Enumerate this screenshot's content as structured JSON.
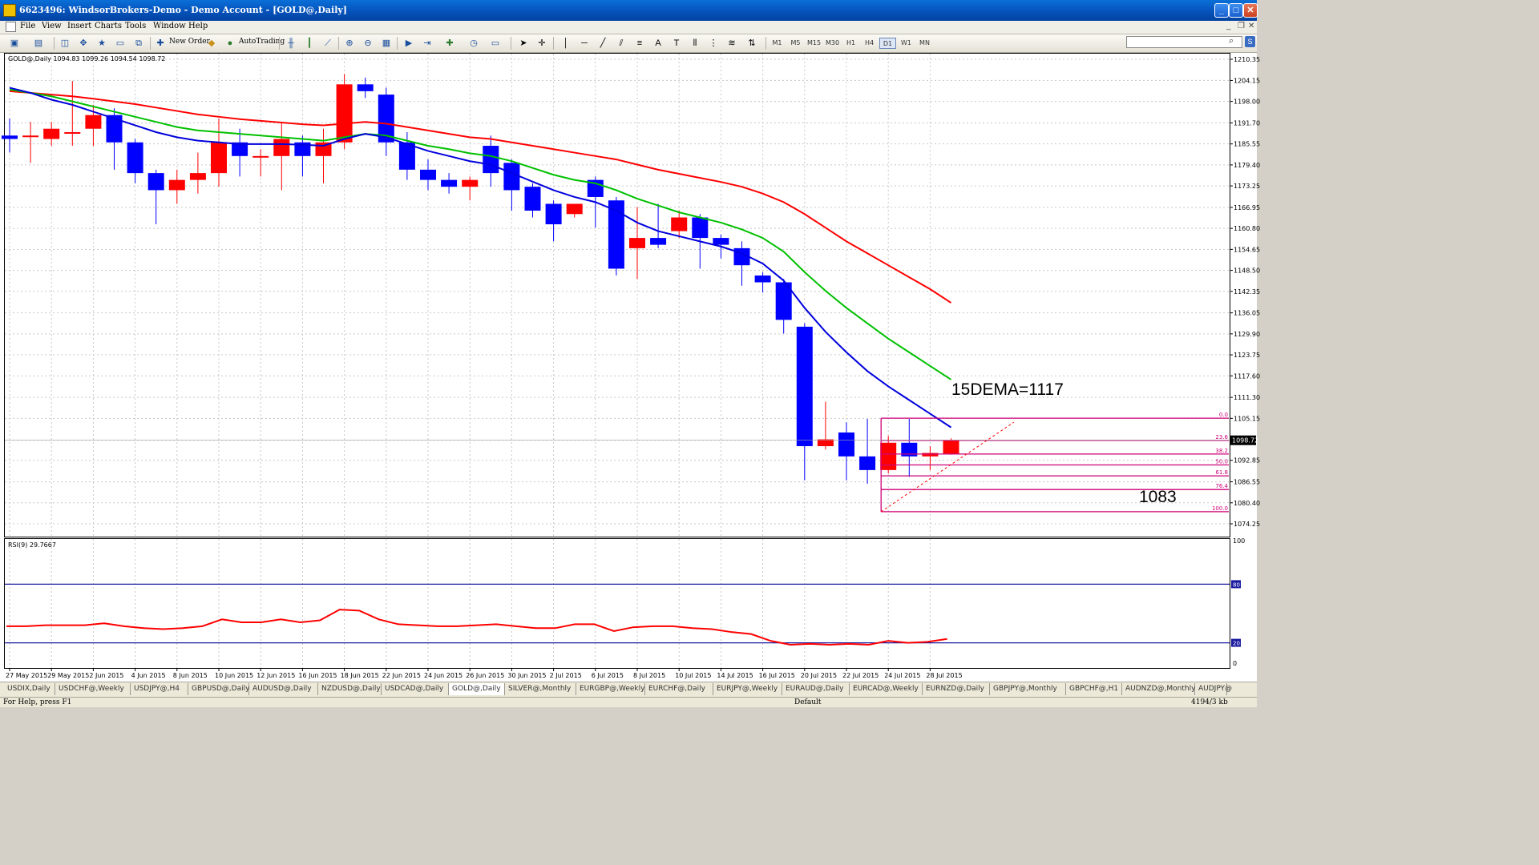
{
  "window": {
    "title": "6623496: WindsorBrokers-Demo - Demo Account - [GOLD@,Daily]",
    "controls": [
      "_",
      "□",
      "✕"
    ]
  },
  "menu": {
    "items": [
      "File",
      "View",
      "Insert",
      "Charts",
      "Tools",
      "Window",
      "Help"
    ],
    "mdi_controls": [
      "_",
      "❐",
      "✕"
    ]
  },
  "toolbar": {
    "new_order_label": "New Order",
    "autotrading_label": "AutoTrading",
    "timeframes": [
      "M1",
      "M5",
      "M15",
      "M30",
      "H1",
      "H4",
      "D1",
      "W1",
      "MN"
    ],
    "active_timeframe": "D1"
  },
  "chart_data": [
    {
      "type": "candlestick",
      "symbol_header": "GOLD@,Daily  1094.83 1099.26 1094.54 1098.72",
      "current_price_label": "1098.72",
      "ylim": [
        1074.25,
        1210.35
      ],
      "y_ticks": [
        "1210.35",
        "1204.15",
        "1198.00",
        "1191.70",
        "1185.55",
        "1179.40",
        "1173.25",
        "1166.95",
        "1160.80",
        "1154.65",
        "1148.50",
        "1142.35",
        "1136.05",
        "1129.90",
        "1123.75",
        "1117.60",
        "1111.30",
        "1105.15",
        "1098.72",
        "1092.85",
        "1086.55",
        "1080.40",
        "1074.25"
      ],
      "x_labels": [
        "27 May 2015",
        "29 May 2015",
        "2 Jun 2015",
        "4 Jun 2015",
        "8 Jun 2015",
        "10 Jun 2015",
        "12 Jun 2015",
        "16 Jun 2015",
        "18 Jun 2015",
        "22 Jun 2015",
        "24 Jun 2015",
        "26 Jun 2015",
        "30 Jun 2015",
        "2 Jul 2015",
        "6 Jul 2015",
        "8 Jul 2015",
        "10 Jul 2015",
        "14 Jul 2015",
        "16 Jul 2015",
        "20 Jul 2015",
        "22 Jul 2015",
        "24 Jul 2015",
        "28 Jul 2015"
      ],
      "candles": [
        {
          "o": 1188.0,
          "h": 1193.0,
          "l": 1183.0,
          "c": 1187.0
        },
        {
          "o": 1188.0,
          "h": 1192.0,
          "l": 1180.0,
          "c": 1188.0
        },
        {
          "o": 1187.0,
          "h": 1192.0,
          "l": 1185.0,
          "c": 1190.0
        },
        {
          "o": 1189.0,
          "h": 1204.0,
          "l": 1185.0,
          "c": 1189.0
        },
        {
          "o": 1190.0,
          "h": 1197.0,
          "l": 1185.0,
          "c": 1194.0
        },
        {
          "o": 1194.0,
          "h": 1196.0,
          "l": 1178.0,
          "c": 1186.0
        },
        {
          "o": 1186.0,
          "h": 1187.0,
          "l": 1174.0,
          "c": 1177.0
        },
        {
          "o": 1177.0,
          "h": 1178.0,
          "l": 1162.0,
          "c": 1172.0
        },
        {
          "o": 1172.0,
          "h": 1178.0,
          "l": 1168.0,
          "c": 1175.0
        },
        {
          "o": 1175.0,
          "h": 1183.0,
          "l": 1171.0,
          "c": 1177.0
        },
        {
          "o": 1177.0,
          "h": 1193.0,
          "l": 1173.0,
          "c": 1186.0
        },
        {
          "o": 1186.0,
          "h": 1190.0,
          "l": 1176.0,
          "c": 1182.0
        },
        {
          "o": 1182.0,
          "h": 1184.0,
          "l": 1176.0,
          "c": 1182.0
        },
        {
          "o": 1182.0,
          "h": 1192.0,
          "l": 1172.0,
          "c": 1187.0
        },
        {
          "o": 1186.0,
          "h": 1188.0,
          "l": 1176.0,
          "c": 1182.0
        },
        {
          "o": 1182.0,
          "h": 1190.0,
          "l": 1174.0,
          "c": 1186.0
        },
        {
          "o": 1186.0,
          "h": 1206.0,
          "l": 1184.0,
          "c": 1203.0
        },
        {
          "o": 1203.0,
          "h": 1205.0,
          "l": 1199.0,
          "c": 1201.0
        },
        {
          "o": 1200.0,
          "h": 1202.0,
          "l": 1182.0,
          "c": 1186.0
        },
        {
          "o": 1186.0,
          "h": 1189.0,
          "l": 1175.0,
          "c": 1178.0
        },
        {
          "o": 1178.0,
          "h": 1181.0,
          "l": 1172.0,
          "c": 1175.0
        },
        {
          "o": 1175.0,
          "h": 1177.0,
          "l": 1171.0,
          "c": 1173.0
        },
        {
          "o": 1173.0,
          "h": 1176.0,
          "l": 1169.0,
          "c": 1175.0
        },
        {
          "o": 1185.0,
          "h": 1188.0,
          "l": 1173.0,
          "c": 1177.0
        },
        {
          "o": 1180.0,
          "h": 1181.0,
          "l": 1166.0,
          "c": 1172.0
        },
        {
          "o": 1173.0,
          "h": 1174.0,
          "l": 1164.0,
          "c": 1166.0
        },
        {
          "o": 1168.0,
          "h": 1169.0,
          "l": 1157.0,
          "c": 1162.0
        },
        {
          "o": 1165.0,
          "h": 1167.0,
          "l": 1164.0,
          "c": 1168.0
        },
        {
          "o": 1175.0,
          "h": 1176.0,
          "l": 1161.0,
          "c": 1170.0
        },
        {
          "o": 1169.0,
          "h": 1170.0,
          "l": 1147.0,
          "c": 1149.0
        },
        {
          "o": 1155.0,
          "h": 1167.0,
          "l": 1146.0,
          "c": 1158.0
        },
        {
          "o": 1158.0,
          "h": 1168.0,
          "l": 1155.0,
          "c": 1156.0
        },
        {
          "o": 1160.0,
          "h": 1166.0,
          "l": 1158.0,
          "c": 1164.0
        },
        {
          "o": 1164.0,
          "h": 1165.0,
          "l": 1149.0,
          "c": 1158.0
        },
        {
          "o": 1158.0,
          "h": 1159.0,
          "l": 1152.0,
          "c": 1156.0
        },
        {
          "o": 1155.0,
          "h": 1157.0,
          "l": 1144.0,
          "c": 1150.0
        },
        {
          "o": 1147.0,
          "h": 1148.0,
          "l": 1142.0,
          "c": 1145.0
        },
        {
          "o": 1145.0,
          "h": 1146.0,
          "l": 1130.0,
          "c": 1134.0
        },
        {
          "o": 1132.0,
          "h": 1133.0,
          "l": 1087.0,
          "c": 1097.0
        },
        {
          "o": 1097.0,
          "h": 1110.0,
          "l": 1096.0,
          "c": 1099.0
        },
        {
          "o": 1101.0,
          "h": 1104.0,
          "l": 1087.0,
          "c": 1094.0
        },
        {
          "o": 1094.0,
          "h": 1105.0,
          "l": 1086.0,
          "c": 1090.0
        },
        {
          "o": 1090.0,
          "h": 1100.0,
          "l": 1089.0,
          "c": 1098.0
        },
        {
          "o": 1098.0,
          "h": 1105.0,
          "l": 1088.0,
          "c": 1094.0
        },
        {
          "o": 1094.0,
          "h": 1097.0,
          "l": 1090.0,
          "c": 1095.0
        },
        {
          "o": 1094.8,
          "h": 1099.3,
          "l": 1094.5,
          "c": 1098.7
        }
      ],
      "series": [
        {
          "color": "#ff0000",
          "values": [
            1201.0,
            1200.5,
            1200.0,
            1199.5,
            1198.8,
            1198.0,
            1197.2,
            1196.2,
            1195.2,
            1194.2,
            1193.5,
            1192.8,
            1192.3,
            1191.8,
            1191.3,
            1191.0,
            1191.5,
            1192.0,
            1191.5,
            1190.5,
            1189.5,
            1188.5,
            1187.5,
            1187.0,
            1186.0,
            1185.0,
            1184.0,
            1183.0,
            1182.0,
            1181.0,
            1179.5,
            1178.0,
            1176.8,
            1175.6,
            1174.4,
            1173.0,
            1171.0,
            1168.5,
            1165.0,
            1161.0,
            1157.0,
            1153.5,
            1150.0,
            1146.5,
            1143.0,
            1139.0
          ]
        },
        {
          "color": "#00c000",
          "values": [
            1201.5,
            1200.5,
            1199.5,
            1198.0,
            1196.5,
            1195.0,
            1193.5,
            1192.0,
            1190.5,
            1189.5,
            1189.0,
            1188.5,
            1188.0,
            1187.5,
            1187.0,
            1186.5,
            1187.5,
            1188.5,
            1188.0,
            1186.5,
            1185.0,
            1184.0,
            1182.8,
            1182.0,
            1180.5,
            1178.5,
            1176.5,
            1175.0,
            1174.0,
            1172.0,
            1169.5,
            1167.5,
            1165.5,
            1164.0,
            1162.5,
            1160.5,
            1158.0,
            1154.0,
            1148.0,
            1142.5,
            1137.5,
            1133.0,
            1128.5,
            1124.5,
            1120.5,
            1116.5
          ]
        },
        {
          "color": "#0000dd",
          "values": [
            1202.0,
            1200.5,
            1198.5,
            1197.0,
            1195.0,
            1193.0,
            1191.0,
            1189.0,
            1187.5,
            1186.5,
            1186.0,
            1185.5,
            1185.5,
            1185.5,
            1185.3,
            1185.0,
            1187.0,
            1188.5,
            1187.5,
            1185.5,
            1183.5,
            1182.0,
            1180.5,
            1179.5,
            1177.0,
            1174.5,
            1172.0,
            1170.0,
            1168.5,
            1166.0,
            1162.5,
            1160.0,
            1158.5,
            1157.0,
            1155.5,
            1153.5,
            1150.5,
            1145.5,
            1137.5,
            1130.5,
            1124.5,
            1119.0,
            1114.5,
            1110.5,
            1106.5,
            1102.5
          ]
        }
      ],
      "annotation_dema": "15DEMA=1117",
      "annotation_target": "1083",
      "fibonacci": {
        "levels": [
          "0.0",
          "23.6",
          "38.2",
          "50.0",
          "61.8",
          "76.4",
          "100.0"
        ],
        "prices": [
          1105.2,
          1098.7,
          1094.7,
          1091.5,
          1088.3,
          1084.3,
          1077.8
        ],
        "color": "#cc0077"
      }
    },
    {
      "type": "line",
      "label": "RSI(9) 29.7667",
      "ylim": [
        0,
        100
      ],
      "y_ticks": [
        "100",
        "80",
        "20",
        "0"
      ],
      "levels": [
        80,
        20
      ],
      "color": "#ff0000",
      "values": [
        37,
        37,
        38,
        38,
        38,
        40,
        37,
        35,
        34,
        35,
        37,
        44,
        41,
        41,
        44,
        41,
        43,
        54,
        53,
        44,
        39,
        38,
        37,
        37,
        38,
        39,
        37,
        35,
        35,
        39,
        39,
        32,
        36,
        37,
        37,
        35,
        34,
        31,
        29,
        22,
        18,
        19,
        18,
        19,
        18,
        22,
        20,
        21,
        24
      ]
    }
  ],
  "tabs": [
    "USDIX,Daily",
    "USDCHF@,Weekly",
    "USDJPY@,H4",
    "GBPUSD@,Daily",
    "AUDUSD@,Daily",
    "NZDUSD@,Daily",
    "USDCAD@,Daily",
    "GOLD@,Daily",
    "SILVER@,Monthly",
    "EURGBP@,Weekly",
    "EURCHF@,Daily",
    "EURJPY@,Weekly",
    "EURAUD@,Daily",
    "EURCAD@,Weekly",
    "EURNZD@,Daily",
    "GBPJPY@,Monthly",
    "GBPCHF@,H1",
    "AUDNZD@,Monthly",
    "AUDJPY@"
  ],
  "active_tab": "GOLD@,Daily",
  "status": {
    "help": "For Help, press F1",
    "profile": "Default",
    "traffic": "4194/3 kb"
  }
}
